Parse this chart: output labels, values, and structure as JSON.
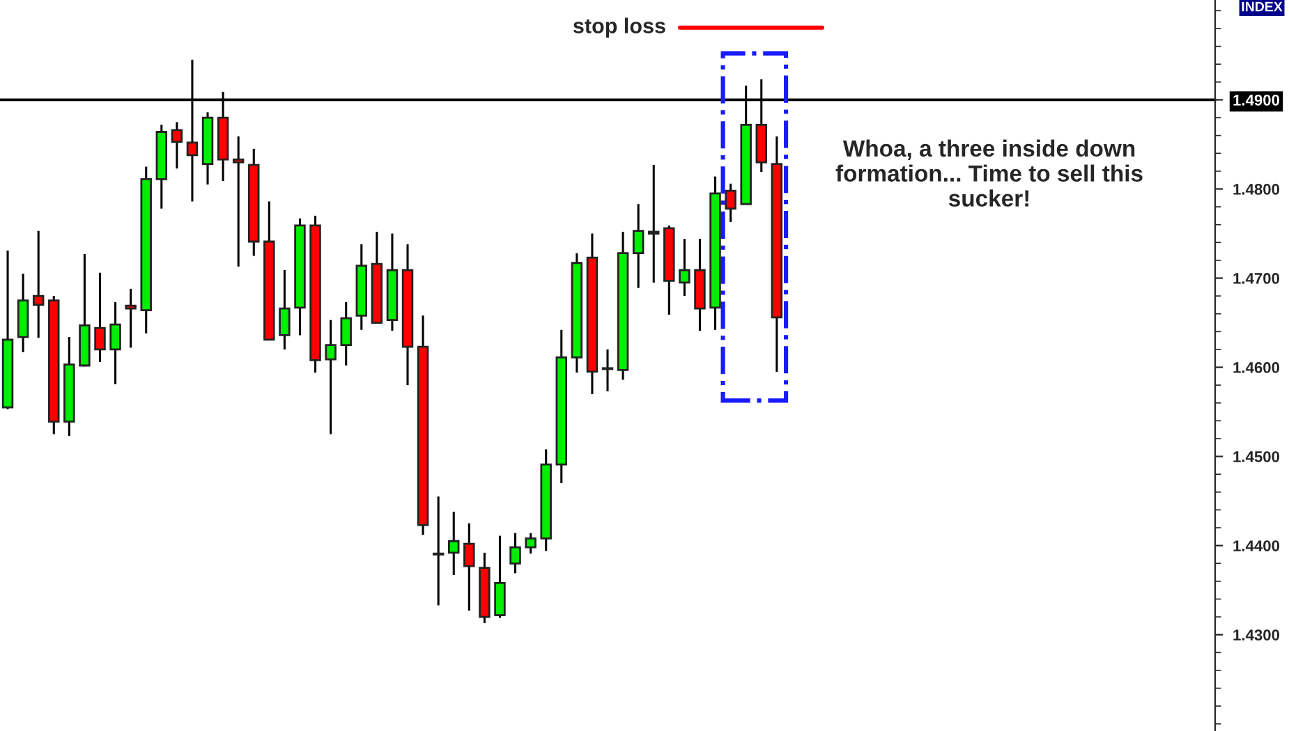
{
  "chart_data": {
    "type": "candlestick",
    "categories": [
      null,
      null,
      null,
      null,
      null,
      null,
      null,
      null,
      null,
      null,
      null,
      null,
      null,
      null,
      null,
      null,
      null,
      null,
      null,
      null,
      null,
      null,
      null,
      null,
      null,
      null,
      null,
      null,
      null,
      null,
      null,
      null,
      null,
      null,
      null,
      null,
      null,
      null,
      null,
      null,
      null,
      null,
      null,
      null,
      null,
      null,
      null,
      null,
      null,
      null,
      null,
      null,
      null,
      null,
      null,
      null,
      null,
      null,
      null,
      null,
      null,
      null,
      null,
      null,
      null,
      null,
      null,
      null,
      null,
      null,
      null,
      null,
      null,
      null,
      null,
      null,
      null,
      null,
      null
    ],
    "ohlc": [
      [
        1.4555,
        1.4731,
        1.4553,
        1.4631
      ],
      [
        1.4634,
        1.4705,
        1.4617,
        1.4675
      ],
      [
        1.468,
        1.4753,
        1.4633,
        1.467
      ],
      [
        1.4675,
        1.468,
        1.4525,
        1.4539
      ],
      [
        1.4539,
        1.4634,
        1.4523,
        1.4603
      ],
      [
        1.4602,
        1.4727,
        1.4601,
        1.4647
      ],
      [
        1.4644,
        1.4706,
        1.4606,
        1.462
      ],
      [
        1.462,
        1.4673,
        1.4581,
        1.4648
      ],
      [
        1.4669,
        1.4688,
        1.4622,
        1.4666
      ],
      [
        1.4664,
        1.4825,
        1.4638,
        1.4811
      ],
      [
        1.4811,
        1.4872,
        1.4778,
        1.4864
      ],
      [
        1.4866,
        1.4875,
        1.4823,
        1.4853
      ],
      [
        1.4852,
        1.4945,
        1.4786,
        1.4838
      ],
      [
        1.4828,
        1.4886,
        1.4805,
        1.488
      ],
      [
        1.488,
        1.4909,
        1.4809,
        1.4833
      ],
      [
        1.4833,
        1.4859,
        1.4713,
        1.483
      ],
      [
        1.4827,
        1.4845,
        1.4725,
        1.4741
      ],
      [
        1.4741,
        1.4786,
        1.4631,
        1.4631
      ],
      [
        1.4636,
        1.4709,
        1.462,
        1.4666
      ],
      [
        1.4667,
        1.4767,
        1.4636,
        1.4759
      ],
      [
        1.4759,
        1.477,
        1.4594,
        1.4608
      ],
      [
        1.4609,
        1.4653,
        1.4525,
        1.4625
      ],
      [
        1.4625,
        1.4673,
        1.4602,
        1.4655
      ],
      [
        1.4658,
        1.4738,
        1.4642,
        1.4714
      ],
      [
        1.4716,
        1.4752,
        1.465,
        1.465
      ],
      [
        1.4653,
        1.475,
        1.4641,
        1.4709
      ],
      [
        1.4709,
        1.4738,
        1.458,
        1.4623
      ],
      [
        1.4623,
        1.4658,
        1.4412,
        1.4423
      ],
      [
        1.4391,
        1.4455,
        1.4333,
        1.439
      ],
      [
        1.4392,
        1.4438,
        1.4367,
        1.4405
      ],
      [
        1.4402,
        1.4425,
        1.4327,
        1.4377
      ],
      [
        1.4375,
        1.4392,
        1.4313,
        1.432
      ],
      [
        1.4322,
        1.4411,
        1.4319,
        1.4358
      ],
      [
        1.438,
        1.4414,
        1.4369,
        1.4398
      ],
      [
        1.4398,
        1.4414,
        1.4391,
        1.4408
      ],
      [
        1.4408,
        1.4508,
        1.4394,
        1.4491
      ],
      [
        1.4491,
        1.4642,
        1.447,
        1.4611
      ],
      [
        1.4611,
        1.4728,
        1.4594,
        1.4717
      ],
      [
        1.4723,
        1.475,
        1.457,
        1.4595
      ],
      [
        1.4599,
        1.462,
        1.4573,
        1.4598
      ],
      [
        1.4597,
        1.4752,
        1.4586,
        1.4728
      ],
      [
        1.4728,
        1.4783,
        1.4689,
        1.4753
      ],
      [
        1.475,
        1.4827,
        1.4695,
        1.4752
      ],
      [
        1.4756,
        1.4759,
        1.4659,
        1.4697
      ],
      [
        1.4695,
        1.4744,
        1.468,
        1.4709
      ],
      [
        1.4709,
        1.4744,
        1.4641,
        1.4666
      ],
      [
        1.4667,
        1.4814,
        1.4642,
        1.4795
      ],
      [
        1.4798,
        1.4806,
        1.4763,
        1.4778
      ],
      [
        1.4783,
        1.4916,
        1.4783,
        1.4872
      ],
      [
        1.4872,
        1.4923,
        1.4819,
        1.483
      ],
      [
        1.4828,
        1.4859,
        1.4595,
        1.4656
      ],
      null,
      null,
      null,
      null,
      null,
      null,
      null,
      null,
      null,
      null,
      null,
      null,
      null,
      null,
      null,
      null,
      null,
      null,
      null,
      null,
      null,
      null,
      null,
      null,
      null,
      null,
      null,
      null
    ],
    "colors": [
      "#00ee00",
      "#00ee00",
      "#ff0000",
      "#ff0000",
      "#00ee00",
      "#00ee00",
      "#ff0000",
      "#00ee00",
      "#ff0000",
      "#00ee00",
      "#00ee00",
      "#ff0000",
      "#ff0000",
      "#00ee00",
      "#ff0000",
      "#ff0000",
      "#ff0000",
      "#ff0000",
      "#00ee00",
      "#00ee00",
      "#ff0000",
      "#00ee00",
      "#00ee00",
      "#00ee00",
      "#ff0000",
      "#00ee00",
      "#ff0000",
      "#ff0000",
      "#000000",
      "#00ee00",
      "#ff0000",
      "#ff0000",
      "#00ee00",
      "#00ee00",
      "#00ee00",
      "#00ee00",
      "#00ee00",
      "#00ee00",
      "#ff0000",
      "#000000",
      "#00ee00",
      "#00ee00",
      "#00ee00",
      "#ff0000",
      "#00ee00",
      "#ff0000",
      "#00ee00",
      "#ff0000",
      "#00ee00",
      "#ff0000",
      "#ff0000",
      null,
      null,
      null,
      null,
      null,
      null,
      null,
      null,
      null,
      null,
      null,
      null,
      null,
      null,
      null,
      null,
      null,
      null,
      null,
      null,
      null,
      null,
      null,
      null,
      null,
      null,
      null,
      null
    ],
    "ylim": [
      1.4192,
      1.5012
    ],
    "yticks": [
      {
        "value": 1.43,
        "label": "1.4300"
      },
      {
        "value": 1.44,
        "label": "1.4400"
      },
      {
        "value": 1.45,
        "label": "1.4500"
      },
      {
        "value": 1.46,
        "label": "1.4600"
      },
      {
        "value": 1.47,
        "label": "1.4700"
      },
      {
        "value": 1.48,
        "label": "1.4800"
      },
      {
        "value": 1.49,
        "label": "1.4900"
      }
    ],
    "ref_lines": [
      {
        "axis": "y",
        "value": 1.49,
        "color": "#000000"
      },
      {
        "axis": "y",
        "value": 1.4981,
        "label": "stop loss",
        "color": "#ff0000"
      }
    ],
    "annotations": [
      "Whoa, a three inside down\nformation... Time to sell this\nsucker!",
      "INDEX"
    ],
    "grid": false
  }
}
